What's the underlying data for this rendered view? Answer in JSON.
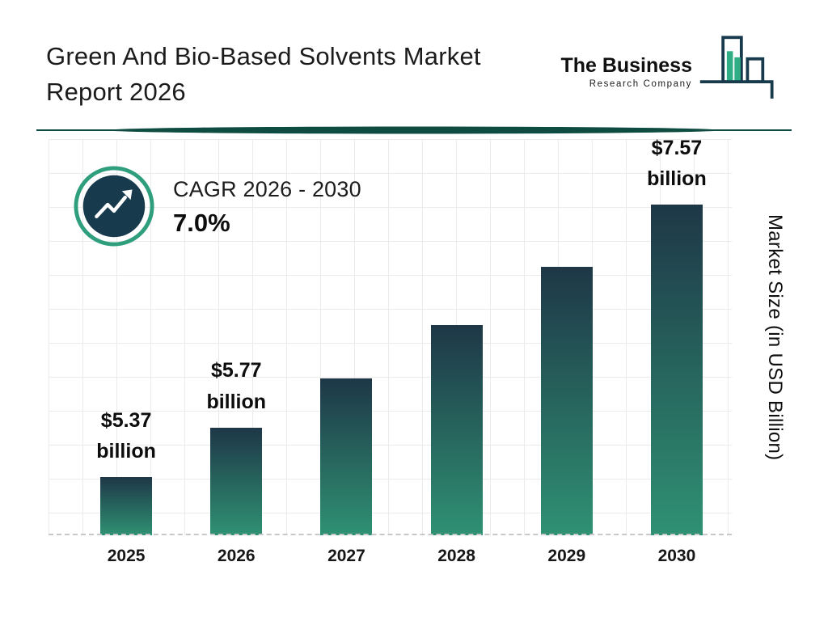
{
  "colors": {
    "navy": "#173a4d",
    "teal": "#2f9e7d",
    "teal_fill": "#2fae85",
    "divider": "#0e4c41",
    "bar_top": "#1e3747",
    "bar_bottom": "#2f9173",
    "grid": "#ebebeb"
  },
  "header": {
    "title_line1": "Green And Bio-Based Solvents Market",
    "title_line2": "Report 2026",
    "logo": {
      "name": "The Business",
      "subname": "Research Company"
    }
  },
  "cagr_badge": {
    "label": "CAGR 2026 - 2030",
    "value": "7.0%",
    "icon": "trend-up-arrow-icon"
  },
  "chart_data": {
    "type": "bar",
    "title": "Green And Bio-Based Solvents Market Report 2026",
    "categories": [
      "2025",
      "2026",
      "2027",
      "2028",
      "2029",
      "2030"
    ],
    "values": [
      5.37,
      5.77,
      6.17,
      6.6,
      7.07,
      7.57
    ],
    "data_labels": [
      {
        "amount": "$5.37",
        "unit": "billion"
      },
      {
        "amount": "$5.77",
        "unit": "billion"
      },
      null,
      null,
      null,
      {
        "amount": "$7.57",
        "unit": "billion"
      }
    ],
    "xlabel": "",
    "ylabel": "Market Size (in USD Billion)",
    "ylim": [
      4.9,
      8.1
    ],
    "grid": true,
    "legend": false,
    "baseline_style": "dashed"
  }
}
